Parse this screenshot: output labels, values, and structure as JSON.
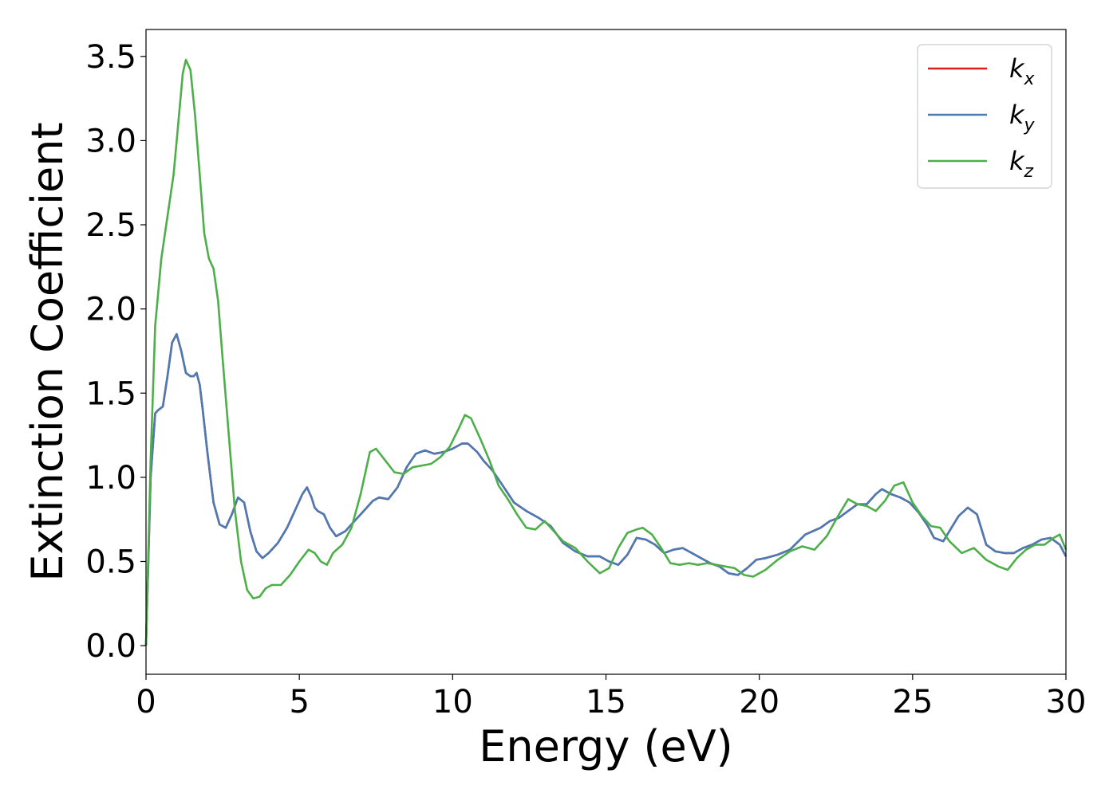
{
  "chart_data": {
    "type": "line",
    "xlabel": "Energy (eV)",
    "ylabel": "Extinction Coefficient",
    "xlim": [
      0,
      30
    ],
    "ylim": [
      -0.17,
      3.66
    ],
    "xticks": [
      0,
      5,
      10,
      15,
      20,
      25,
      30
    ],
    "xtick_labels": [
      "0",
      "5",
      "10",
      "15",
      "20",
      "25",
      "30"
    ],
    "yticks": [
      0.0,
      0.5,
      1.0,
      1.5,
      2.0,
      2.5,
      3.0,
      3.5
    ],
    "ytick_labels": [
      "0.0",
      "0.5",
      "1.0",
      "1.5",
      "2.0",
      "2.5",
      "3.0",
      "3.5"
    ],
    "grid": false,
    "legend_position": "top-right",
    "series": [
      {
        "name": "k",
        "subscript": "x",
        "color": "#e41a1c",
        "x": [
          0,
          0.15,
          0.3,
          0.4,
          0.55,
          0.7,
          0.85,
          1.0,
          1.15,
          1.3,
          1.45,
          1.55,
          1.65,
          1.75,
          1.85,
          2.0,
          2.2,
          2.4,
          2.6,
          2.8,
          3.0,
          3.2,
          3.4,
          3.6,
          3.8,
          4.0,
          4.3,
          4.6,
          4.9,
          5.1,
          5.25,
          5.4,
          5.5,
          5.6,
          5.8,
          6.0,
          6.2,
          6.5,
          6.8,
          7.1,
          7.4,
          7.6,
          7.9,
          8.2,
          8.5,
          8.8,
          9.1,
          9.4,
          9.7,
          10.0,
          10.3,
          10.5,
          10.8,
          11.0,
          11.3,
          11.6,
          12.0,
          12.4,
          12.8,
          13.2,
          13.6,
          14.0,
          14.4,
          14.8,
          15.1,
          15.4,
          15.7,
          16.0,
          16.3,
          16.6,
          16.9,
          17.2,
          17.5,
          17.8,
          18.1,
          18.4,
          18.7,
          19.0,
          19.3,
          19.6,
          19.9,
          20.2,
          20.6,
          21.0,
          21.5,
          22.0,
          22.3,
          22.6,
          22.9,
          23.2,
          23.5,
          23.8,
          24.0,
          24.3,
          24.6,
          24.9,
          25.2,
          25.5,
          25.7,
          26.0,
          26.3,
          26.5,
          26.8,
          27.1,
          27.4,
          27.7,
          28.0,
          28.3,
          28.6,
          28.9,
          29.2,
          29.5,
          29.8,
          30.0
        ],
        "y": [
          0.0,
          1.0,
          1.38,
          1.4,
          1.42,
          1.6,
          1.8,
          1.85,
          1.75,
          1.62,
          1.6,
          1.6,
          1.62,
          1.55,
          1.4,
          1.15,
          0.85,
          0.72,
          0.7,
          0.78,
          0.88,
          0.85,
          0.68,
          0.56,
          0.52,
          0.55,
          0.61,
          0.7,
          0.82,
          0.9,
          0.94,
          0.88,
          0.82,
          0.8,
          0.78,
          0.7,
          0.65,
          0.68,
          0.74,
          0.8,
          0.86,
          0.88,
          0.87,
          0.94,
          1.06,
          1.14,
          1.16,
          1.14,
          1.15,
          1.17,
          1.2,
          1.2,
          1.15,
          1.1,
          1.04,
          0.96,
          0.85,
          0.8,
          0.76,
          0.71,
          0.61,
          0.56,
          0.53,
          0.53,
          0.5,
          0.48,
          0.54,
          0.64,
          0.63,
          0.6,
          0.55,
          0.57,
          0.58,
          0.55,
          0.52,
          0.49,
          0.47,
          0.43,
          0.42,
          0.46,
          0.51,
          0.52,
          0.54,
          0.57,
          0.66,
          0.7,
          0.74,
          0.76,
          0.8,
          0.84,
          0.84,
          0.9,
          0.93,
          0.9,
          0.88,
          0.85,
          0.79,
          0.71,
          0.64,
          0.62,
          0.71,
          0.77,
          0.82,
          0.78,
          0.6,
          0.56,
          0.55,
          0.55,
          0.58,
          0.6,
          0.63,
          0.64,
          0.6,
          0.53
        ]
      },
      {
        "name": "k",
        "subscript": "y",
        "color": "#4a7bb5",
        "x": [
          0,
          0.15,
          0.3,
          0.4,
          0.55,
          0.7,
          0.85,
          1.0,
          1.15,
          1.3,
          1.45,
          1.55,
          1.65,
          1.75,
          1.85,
          2.0,
          2.2,
          2.4,
          2.6,
          2.8,
          3.0,
          3.2,
          3.4,
          3.6,
          3.8,
          4.0,
          4.3,
          4.6,
          4.9,
          5.1,
          5.25,
          5.4,
          5.5,
          5.6,
          5.8,
          6.0,
          6.2,
          6.5,
          6.8,
          7.1,
          7.4,
          7.6,
          7.9,
          8.2,
          8.5,
          8.8,
          9.1,
          9.4,
          9.7,
          10.0,
          10.3,
          10.5,
          10.8,
          11.0,
          11.3,
          11.6,
          12.0,
          12.4,
          12.8,
          13.2,
          13.6,
          14.0,
          14.4,
          14.8,
          15.1,
          15.4,
          15.7,
          16.0,
          16.3,
          16.6,
          16.9,
          17.2,
          17.5,
          17.8,
          18.1,
          18.4,
          18.7,
          19.0,
          19.3,
          19.6,
          19.9,
          20.2,
          20.6,
          21.0,
          21.5,
          22.0,
          22.3,
          22.6,
          22.9,
          23.2,
          23.5,
          23.8,
          24.0,
          24.3,
          24.6,
          24.9,
          25.2,
          25.5,
          25.7,
          26.0,
          26.3,
          26.5,
          26.8,
          27.1,
          27.4,
          27.7,
          28.0,
          28.3,
          28.6,
          28.9,
          29.2,
          29.5,
          29.8,
          30.0
        ],
        "y": [
          0.0,
          1.0,
          1.38,
          1.4,
          1.42,
          1.6,
          1.8,
          1.85,
          1.75,
          1.62,
          1.6,
          1.6,
          1.62,
          1.55,
          1.4,
          1.15,
          0.85,
          0.72,
          0.7,
          0.78,
          0.88,
          0.85,
          0.68,
          0.56,
          0.52,
          0.55,
          0.61,
          0.7,
          0.82,
          0.9,
          0.94,
          0.88,
          0.82,
          0.8,
          0.78,
          0.7,
          0.65,
          0.68,
          0.74,
          0.8,
          0.86,
          0.88,
          0.87,
          0.94,
          1.06,
          1.14,
          1.16,
          1.14,
          1.15,
          1.17,
          1.2,
          1.2,
          1.15,
          1.1,
          1.04,
          0.96,
          0.85,
          0.8,
          0.76,
          0.71,
          0.61,
          0.56,
          0.53,
          0.53,
          0.5,
          0.48,
          0.54,
          0.64,
          0.63,
          0.6,
          0.55,
          0.57,
          0.58,
          0.55,
          0.52,
          0.49,
          0.47,
          0.43,
          0.42,
          0.46,
          0.51,
          0.52,
          0.54,
          0.57,
          0.66,
          0.7,
          0.74,
          0.76,
          0.8,
          0.84,
          0.84,
          0.9,
          0.93,
          0.9,
          0.88,
          0.85,
          0.79,
          0.71,
          0.64,
          0.62,
          0.71,
          0.77,
          0.82,
          0.78,
          0.6,
          0.56,
          0.55,
          0.55,
          0.58,
          0.6,
          0.63,
          0.64,
          0.6,
          0.53
        ]
      },
      {
        "name": "k",
        "subscript": "z",
        "color": "#4daf4a",
        "x": [
          0,
          0.15,
          0.3,
          0.5,
          0.7,
          0.9,
          1.05,
          1.2,
          1.3,
          1.45,
          1.6,
          1.75,
          1.9,
          2.05,
          2.2,
          2.35,
          2.5,
          2.7,
          2.9,
          3.1,
          3.3,
          3.5,
          3.7,
          3.9,
          4.1,
          4.4,
          4.7,
          5.0,
          5.3,
          5.5,
          5.7,
          5.9,
          6.1,
          6.4,
          6.7,
          7.0,
          7.3,
          7.5,
          7.8,
          8.1,
          8.4,
          8.7,
          9.0,
          9.3,
          9.6,
          9.9,
          10.2,
          10.4,
          10.6,
          10.9,
          11.2,
          11.5,
          11.8,
          12.1,
          12.4,
          12.7,
          13.0,
          13.3,
          13.6,
          14.0,
          14.4,
          14.8,
          15.1,
          15.4,
          15.7,
          16.0,
          16.2,
          16.5,
          16.8,
          17.1,
          17.4,
          17.7,
          18.0,
          18.3,
          18.6,
          18.9,
          19.2,
          19.5,
          19.8,
          20.2,
          20.6,
          21.0,
          21.4,
          21.8,
          22.2,
          22.6,
          22.9,
          23.2,
          23.5,
          23.8,
          24.1,
          24.4,
          24.7,
          25.0,
          25.3,
          25.6,
          25.9,
          26.2,
          26.6,
          27.0,
          27.4,
          27.8,
          28.1,
          28.4,
          28.7,
          29.0,
          29.3,
          29.6,
          29.8,
          30.0
        ],
        "y": [
          0.0,
          1.1,
          1.9,
          2.3,
          2.55,
          2.8,
          3.1,
          3.4,
          3.48,
          3.42,
          3.15,
          2.8,
          2.45,
          2.3,
          2.24,
          2.05,
          1.7,
          1.25,
          0.8,
          0.5,
          0.33,
          0.28,
          0.29,
          0.34,
          0.36,
          0.36,
          0.42,
          0.5,
          0.57,
          0.55,
          0.5,
          0.48,
          0.55,
          0.6,
          0.7,
          0.9,
          1.15,
          1.17,
          1.1,
          1.03,
          1.02,
          1.06,
          1.07,
          1.08,
          1.12,
          1.18,
          1.29,
          1.37,
          1.35,
          1.23,
          1.1,
          0.95,
          0.87,
          0.78,
          0.7,
          0.69,
          0.74,
          0.68,
          0.62,
          0.58,
          0.5,
          0.43,
          0.46,
          0.58,
          0.67,
          0.69,
          0.7,
          0.66,
          0.58,
          0.49,
          0.48,
          0.49,
          0.48,
          0.49,
          0.48,
          0.47,
          0.46,
          0.42,
          0.41,
          0.45,
          0.51,
          0.56,
          0.59,
          0.57,
          0.65,
          0.78,
          0.87,
          0.84,
          0.83,
          0.8,
          0.86,
          0.95,
          0.97,
          0.85,
          0.77,
          0.71,
          0.7,
          0.62,
          0.55,
          0.58,
          0.51,
          0.47,
          0.45,
          0.52,
          0.57,
          0.6,
          0.6,
          0.64,
          0.66,
          0.57
        ]
      }
    ]
  }
}
